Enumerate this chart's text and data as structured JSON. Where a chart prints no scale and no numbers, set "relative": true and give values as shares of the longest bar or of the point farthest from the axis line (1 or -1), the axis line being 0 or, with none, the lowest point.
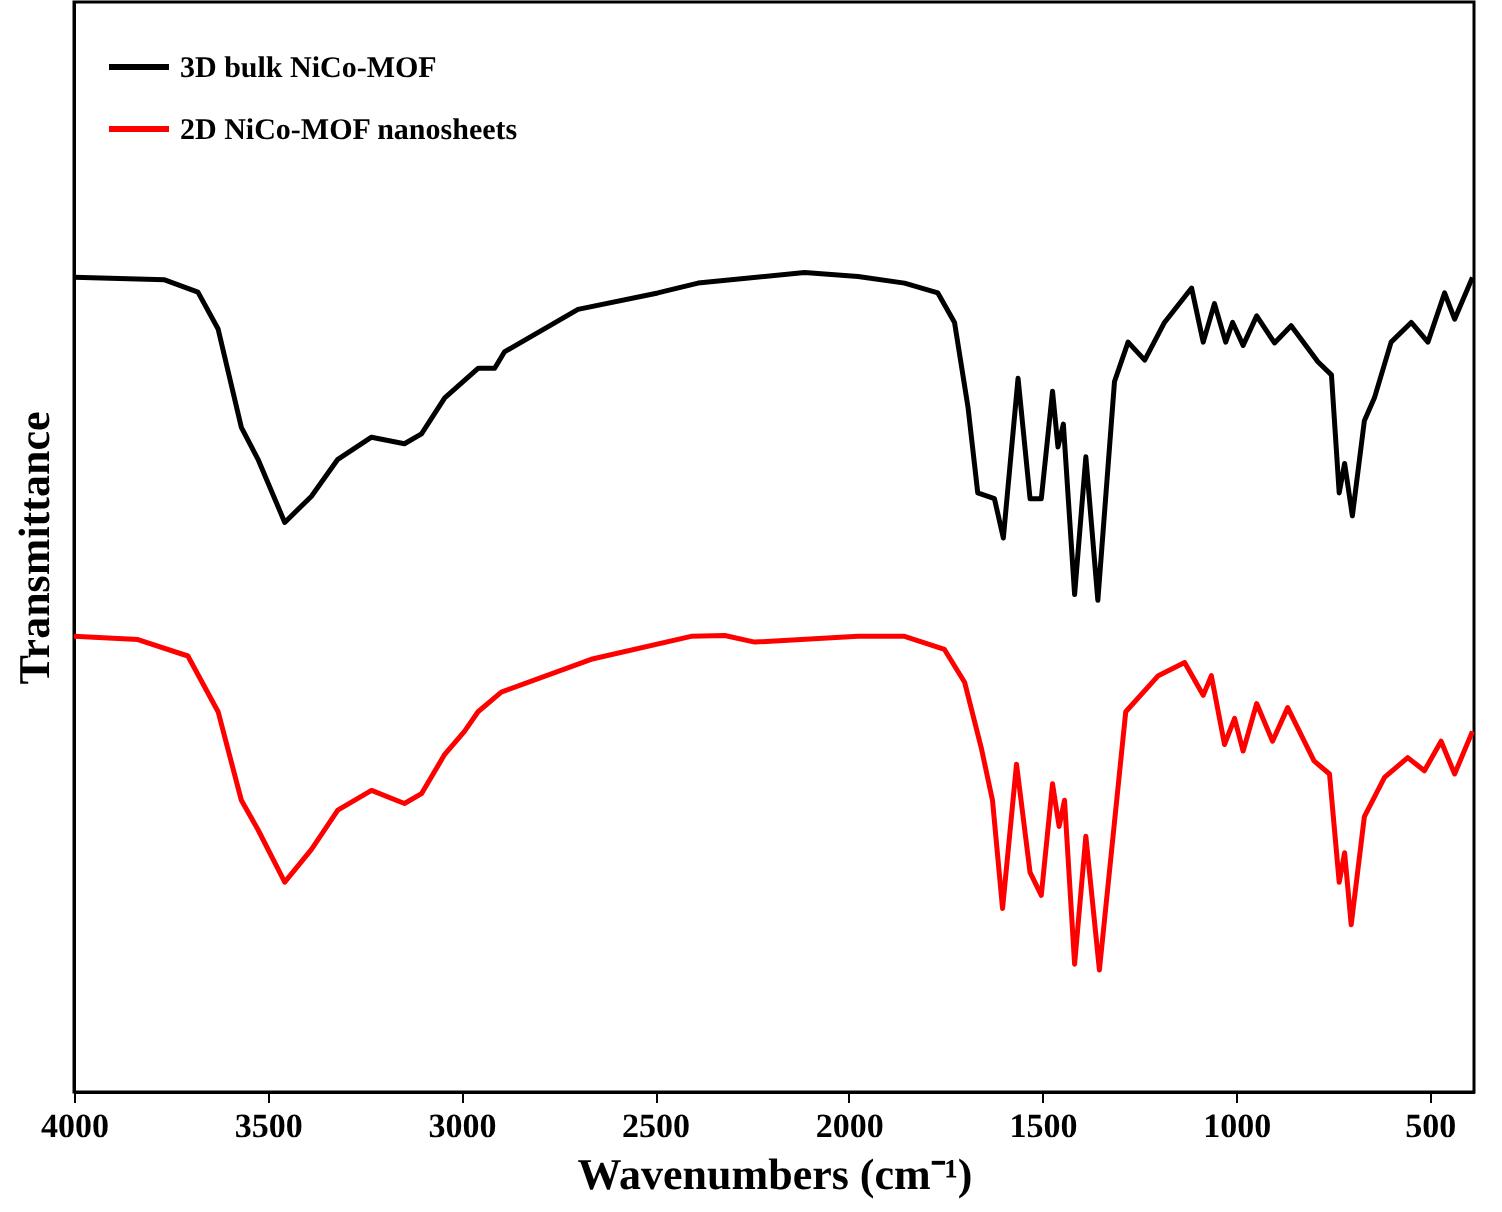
{
  "chart_data": {
    "type": "line",
    "relative": true,
    "xlabel": "Wavenumbers (cm⁻¹)",
    "ylabel": "Transmittance",
    "xlim": [
      4000,
      386
    ],
    "xticks": [
      {
        "value": 4000,
        "label": "4000"
      },
      {
        "value": 3500,
        "label": "3500"
      },
      {
        "value": 3000,
        "label": "3000"
      },
      {
        "value": 2500,
        "label": "2500"
      },
      {
        "value": 2000,
        "label": "2000"
      },
      {
        "value": 1500,
        "label": "1500"
      },
      {
        "value": 1000,
        "label": "1000"
      },
      {
        "value": 500,
        "label": "500"
      }
    ],
    "tick_labels": "x",
    "grid": false,
    "legend": "top left",
    "line_style": "solid",
    "marker": "none",
    "series": [
      {
        "name": "3D bulk NiCo-MOF",
        "color": "#000000",
        "x": [
          4000,
          3766,
          3680,
          3628,
          3568,
          3525,
          3456,
          3387,
          3319,
          3232,
          3147,
          3103,
          3043,
          2957,
          2914,
          2889,
          2699,
          2493,
          2389,
          2114,
          1976,
          1856,
          1770,
          1727,
          1692,
          1667,
          1624,
          1601,
          1563,
          1532,
          1503,
          1474,
          1460,
          1446,
          1417,
          1388,
          1357,
          1314,
          1279,
          1236,
          1185,
          1115,
          1085,
          1056,
          1027,
          1009,
          982,
          947,
          901,
          858,
          789,
          754,
          734,
          720,
          700,
          669,
          643,
          600,
          548,
          505,
          462,
          436,
          390
        ],
        "values": [
          0.994,
          0.991,
          0.976,
          0.931,
          0.811,
          0.772,
          0.695,
          0.727,
          0.772,
          0.799,
          0.791,
          0.803,
          0.847,
          0.883,
          0.883,
          0.903,
          0.955,
          0.975,
          0.987,
          1.0,
          0.995,
          0.987,
          0.975,
          0.939,
          0.835,
          0.731,
          0.724,
          0.676,
          0.871,
          0.724,
          0.724,
          0.855,
          0.787,
          0.815,
          0.607,
          0.775,
          0.6,
          0.867,
          0.915,
          0.893,
          0.939,
          0.981,
          0.915,
          0.962,
          0.915,
          0.939,
          0.911,
          0.947,
          0.914,
          0.935,
          0.891,
          0.875,
          0.731,
          0.767,
          0.703,
          0.819,
          0.847,
          0.915,
          0.939,
          0.915,
          0.975,
          0.943,
          0.994
        ]
      },
      {
        "name": "2D NiCo-MOF nanosheets",
        "color": "#ff0000",
        "x": [
          4000,
          3835,
          3706,
          3628,
          3568,
          3525,
          3456,
          3387,
          3319,
          3232,
          3147,
          3103,
          3043,
          2992,
          2957,
          2897,
          2665,
          2407,
          2320,
          2243,
          1976,
          1856,
          1753,
          1701,
          1658,
          1629,
          1603,
          1567,
          1532,
          1503,
          1474,
          1457,
          1443,
          1417,
          1388,
          1353,
          1285,
          1201,
          1133,
          1085,
          1064,
          1030,
          1004,
          982,
          947,
          906,
          867,
          799,
          759,
          734,
          720,
          703,
          669,
          617,
          557,
          514,
          471,
          436,
          390
        ],
        "values": [
          0.556,
          0.552,
          0.532,
          0.464,
          0.356,
          0.32,
          0.256,
          0.296,
          0.344,
          0.368,
          0.352,
          0.364,
          0.412,
          0.44,
          0.464,
          0.488,
          0.528,
          0.556,
          0.557,
          0.549,
          0.556,
          0.556,
          0.54,
          0.5,
          0.42,
          0.356,
          0.224,
          0.4,
          0.268,
          0.24,
          0.376,
          0.324,
          0.356,
          0.156,
          0.312,
          0.149,
          0.464,
          0.508,
          0.524,
          0.484,
          0.508,
          0.424,
          0.456,
          0.416,
          0.474,
          0.428,
          0.469,
          0.404,
          0.388,
          0.256,
          0.292,
          0.204,
          0.336,
          0.384,
          0.408,
          0.392,
          0.428,
          0.388,
          0.44
        ]
      }
    ]
  }
}
